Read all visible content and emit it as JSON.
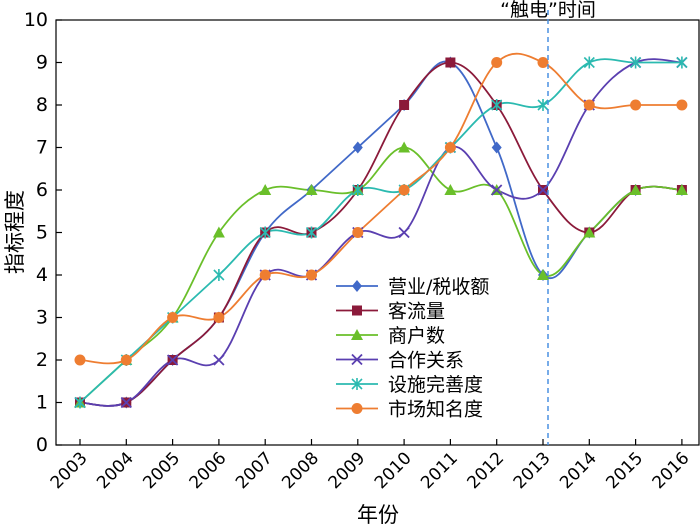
{
  "chart_data": {
    "type": "line",
    "title": "",
    "xlabel": "年份",
    "ylabel": "指标程度",
    "x": [
      "2003",
      "2004",
      "2005",
      "2006",
      "2007",
      "2008",
      "2009",
      "2010",
      "2011",
      "2012",
      "2013",
      "2014",
      "2015",
      "2016"
    ],
    "ylim": [
      0,
      10
    ],
    "yticks": [
      "0",
      "1",
      "2",
      "3",
      "4",
      "5",
      "6",
      "7",
      "8",
      "9",
      "10"
    ],
    "grid": false,
    "legend_position": "bottom-center",
    "annotation": {
      "label": "“触电”时间",
      "x": "2013",
      "style": "dashed",
      "color": "#4a90e2"
    },
    "series": [
      {
        "name": "营业/税收额",
        "color": "#4169c8",
        "marker": "diamond",
        "values": [
          1,
          1,
          2,
          3,
          5,
          6,
          7,
          8,
          9,
          7,
          4,
          5,
          6,
          6
        ]
      },
      {
        "name": "客流量",
        "color": "#8b1a3a",
        "marker": "square",
        "values": [
          1,
          1,
          2,
          3,
          5,
          5,
          6,
          8,
          9,
          8,
          6,
          5,
          6,
          6
        ]
      },
      {
        "name": "商户数",
        "color": "#6abf2a",
        "marker": "triangle",
        "values": [
          1,
          2,
          3,
          5,
          6,
          6,
          6,
          7,
          6,
          6,
          4,
          5,
          6,
          6
        ]
      },
      {
        "name": "合作关系",
        "color": "#5a3fb0",
        "marker": "x",
        "values": [
          1,
          1,
          2,
          2,
          4,
          4,
          5,
          5,
          7,
          6,
          6,
          8,
          9,
          9
        ]
      },
      {
        "name": "设施完善度",
        "color": "#2bbab0",
        "marker": "star",
        "values": [
          1,
          2,
          3,
          4,
          5,
          5,
          6,
          6,
          7,
          8,
          8,
          9,
          9,
          9
        ]
      },
      {
        "name": "市场知名度",
        "color": "#ee7d31",
        "marker": "circle",
        "values": [
          2,
          2,
          3,
          3,
          4,
          4,
          5,
          6,
          7,
          9,
          9,
          8,
          8,
          8
        ]
      }
    ]
  }
}
